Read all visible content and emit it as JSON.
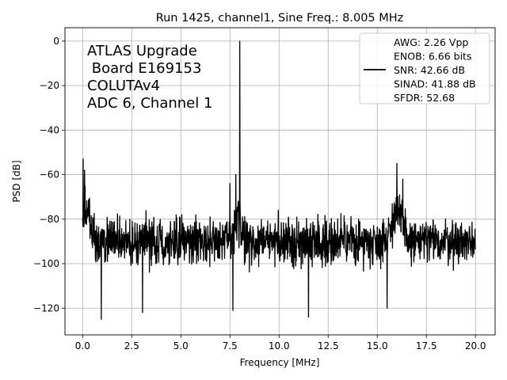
{
  "chart_data": {
    "type": "line",
    "title": "Run 1425, channel1, Sine Freq.: 8.005 MHz",
    "xlabel": "Frequency [MHz]",
    "ylabel": "PSD [dB]",
    "xlim": [
      -0.9,
      21.0
    ],
    "ylim": [
      -132,
      6
    ],
    "x_ticks": [
      0.0,
      2.5,
      5.0,
      7.5,
      10.0,
      12.5,
      15.0,
      17.5,
      20.0
    ],
    "x_tick_labels": [
      "0.0",
      "2.5",
      "5.0",
      "7.5",
      "10.0",
      "12.5",
      "15.0",
      "17.5",
      "20.0"
    ],
    "y_ticks": [
      0,
      -20,
      -40,
      -60,
      -80,
      -100,
      -120
    ],
    "y_tick_labels": [
      "0",
      "−20",
      "−40",
      "−60",
      "−80",
      "−100",
      "−120"
    ],
    "grid": true,
    "annotation_lines": [
      "ATLAS Upgrade",
      " Board E169153",
      "COLUTAv4",
      "ADC 6, Channel 1"
    ],
    "legend": {
      "placement": "top-right",
      "lines": [
        "AWG: 2.26 Vpp",
        "ENOB: 6.66 bits",
        "SNR: 42.66 dB",
        "SINAD: 41.88 dB",
        "SFDR: 52.68"
      ]
    },
    "series": [
      {
        "color": "#000000",
        "x_range": [
          0.0,
          20.0
        ],
        "noise_floor_db": -90,
        "noise_band_db": [
          -103,
          -72
        ],
        "features": [
          {
            "x": 0.02,
            "y": -53
          },
          {
            "x": 0.1,
            "y": -58
          },
          {
            "x": 0.95,
            "y": -125
          },
          {
            "x": 3.05,
            "y": -122
          },
          {
            "x": 7.65,
            "y": -121
          },
          {
            "x": 7.5,
            "y": -64
          },
          {
            "x": 7.8,
            "y": -60
          },
          {
            "x": 8.005,
            "y": 0
          },
          {
            "x": 11.5,
            "y": -124
          },
          {
            "x": 15.5,
            "y": -120
          },
          {
            "x": 16.0,
            "y": -55
          },
          {
            "x": 16.3,
            "y": -62
          }
        ]
      }
    ]
  }
}
